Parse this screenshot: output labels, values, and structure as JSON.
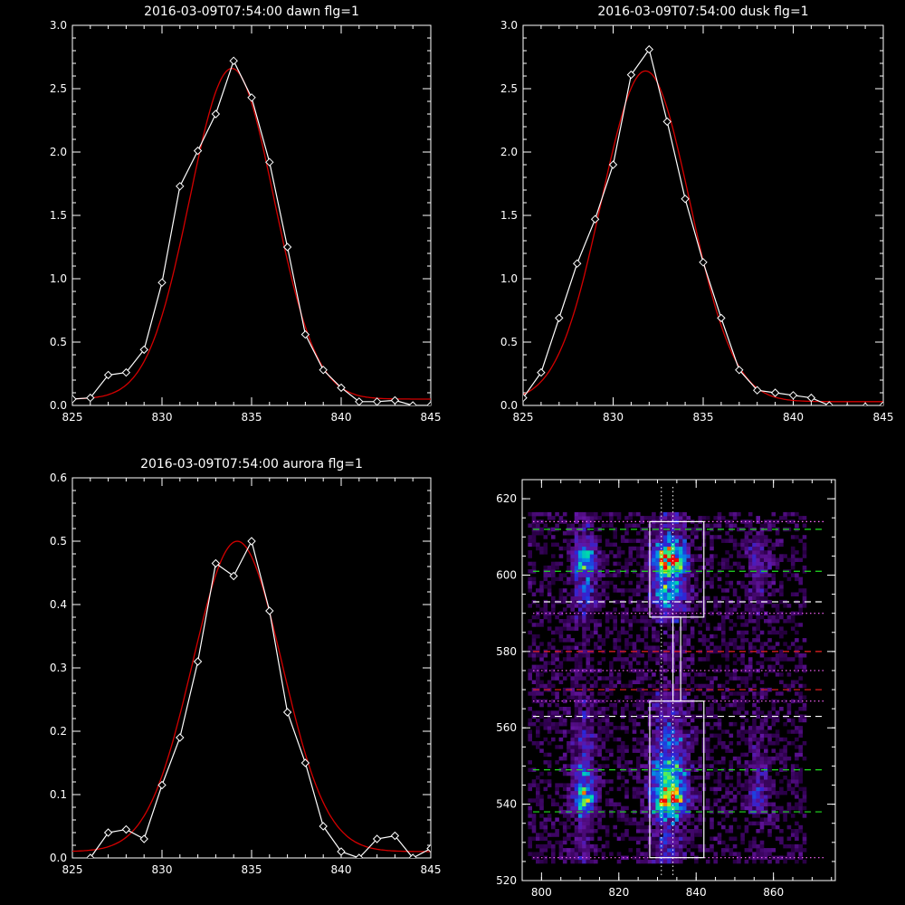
{
  "colors": {
    "data": "#ffffff",
    "fit": "#d40000",
    "bg": "#000000"
  },
  "chart_data": [
    {
      "type": "line",
      "title": "2016-03-09T07:54:00 dawn flg=1",
      "xlim": [
        825,
        845
      ],
      "ylim": [
        0,
        3.0
      ],
      "x_ticks": [
        825,
        830,
        835,
        840,
        845
      ],
      "y_ticks": [
        0.0,
        0.5,
        1.0,
        1.5,
        2.0,
        2.5,
        3.0
      ],
      "y_tick_labels": [
        "0.0",
        "0.5",
        "1.0",
        "1.5",
        "2.0",
        "2.5",
        "3.0"
      ],
      "series": [
        {
          "role": "data",
          "marker": "diamond",
          "x": [
            825,
            826,
            827,
            828,
            829,
            830,
            831,
            832,
            833,
            834,
            835,
            836,
            837,
            838,
            839,
            840,
            841,
            842,
            843,
            844,
            845
          ],
          "y": [
            0.05,
            0.06,
            0.24,
            0.26,
            0.44,
            0.97,
            1.73,
            2.01,
            2.3,
            2.72,
            2.43,
            1.92,
            1.25,
            0.56,
            0.28,
            0.14,
            0.03,
            0.03,
            0.04,
            0.0,
            0.0
          ]
        },
        {
          "role": "fit",
          "model": "gaussian",
          "amplitude": 2.61,
          "center": 833.9,
          "sigma": 2.35,
          "offset": 0.05
        }
      ]
    },
    {
      "type": "line",
      "title": "2016-03-09T07:54:00 dusk flg=1",
      "xlim": [
        825,
        845
      ],
      "ylim": [
        0,
        3.0
      ],
      "x_ticks": [
        825,
        830,
        835,
        840,
        845
      ],
      "y_ticks": [
        0.0,
        0.5,
        1.0,
        1.5,
        2.0,
        2.5,
        3.0
      ],
      "y_tick_labels": [
        "0.0",
        "0.5",
        "1.0",
        "1.5",
        "2.0",
        "2.5",
        "3.0"
      ],
      "series": [
        {
          "role": "data",
          "marker": "diamond",
          "x": [
            825,
            826,
            827,
            828,
            829,
            830,
            831,
            832,
            833,
            834,
            835,
            836,
            837,
            838,
            839,
            840,
            841,
            842,
            843,
            844,
            845
          ],
          "y": [
            0.06,
            0.26,
            0.69,
            1.12,
            1.47,
            1.9,
            2.61,
            2.81,
            2.24,
            1.63,
            1.13,
            0.69,
            0.28,
            0.12,
            0.1,
            0.08,
            0.06,
            0.0,
            -0.02,
            -0.01,
            0.0
          ]
        },
        {
          "role": "fit",
          "model": "gaussian",
          "amplitude": 2.61,
          "center": 831.8,
          "sigma": 2.45,
          "offset": 0.03
        }
      ]
    },
    {
      "type": "line",
      "title": "2016-03-09T07:54:00 aurora flg=1",
      "xlim": [
        825,
        845
      ],
      "ylim": [
        0,
        0.6
      ],
      "x_ticks": [
        825,
        830,
        835,
        840,
        845
      ],
      "y_ticks": [
        0.0,
        0.1,
        0.2,
        0.3,
        0.4,
        0.5,
        0.6
      ],
      "y_tick_labels": [
        "0.0",
        "0.1",
        "0.2",
        "0.3",
        "0.4",
        "0.5",
        "0.6"
      ],
      "series": [
        {
          "role": "data",
          "marker": "diamond",
          "x": [
            826,
            827,
            828,
            829,
            830,
            831,
            832,
            833,
            834,
            835,
            836,
            837,
            838,
            839,
            840,
            841,
            842,
            843,
            844,
            845
          ],
          "y": [
            0.0,
            0.04,
            0.045,
            0.03,
            0.115,
            0.19,
            0.31,
            0.465,
            0.445,
            0.5,
            0.39,
            0.23,
            0.15,
            0.05,
            0.01,
            0.0,
            0.03,
            0.035,
            0.0,
            0.015
          ]
        },
        {
          "role": "fit",
          "model": "gaussian",
          "amplitude": 0.49,
          "center": 834.2,
          "sigma": 2.5,
          "offset": 0.01
        }
      ]
    },
    {
      "type": "heatmap",
      "xlim": [
        795,
        876
      ],
      "ylim": [
        520,
        625
      ],
      "x_ticks": [
        800,
        820,
        840,
        860
      ],
      "y_ticks": [
        520,
        540,
        560,
        580,
        600,
        620
      ],
      "bright_columns": [
        {
          "x": 811,
          "width": 6,
          "peak": 0.65
        },
        {
          "x": 833,
          "width": 9,
          "peak": 1.0
        },
        {
          "x": 856,
          "width": 6,
          "peak": 0.3
        }
      ],
      "bright_rows": [
        {
          "y": 542,
          "strength": 1.0
        },
        {
          "y": 548,
          "strength": 0.7
        },
        {
          "y": 604,
          "strength": 0.95
        },
        {
          "y": 596,
          "strength": 0.6
        },
        {
          "y": 556,
          "strength": 0.45
        }
      ],
      "boxes": [
        {
          "x0": 828,
          "x1": 842,
          "y0": 589,
          "y1": 614
        },
        {
          "x0": 828,
          "x1": 842,
          "y0": 526,
          "y1": 567
        }
      ],
      "connector": {
        "x0": 834,
        "x1": 836,
        "y0": 567,
        "y1": 589
      },
      "vertical_lines": [
        831,
        834
      ],
      "hlines_green": [
        612,
        601,
        549,
        538
      ],
      "hlines_white_dash": [
        593,
        563
      ],
      "hlines_red_dash": [
        580,
        570
      ],
      "hlines_magenta_dot": [
        614,
        590,
        575,
        567,
        526
      ]
    }
  ]
}
